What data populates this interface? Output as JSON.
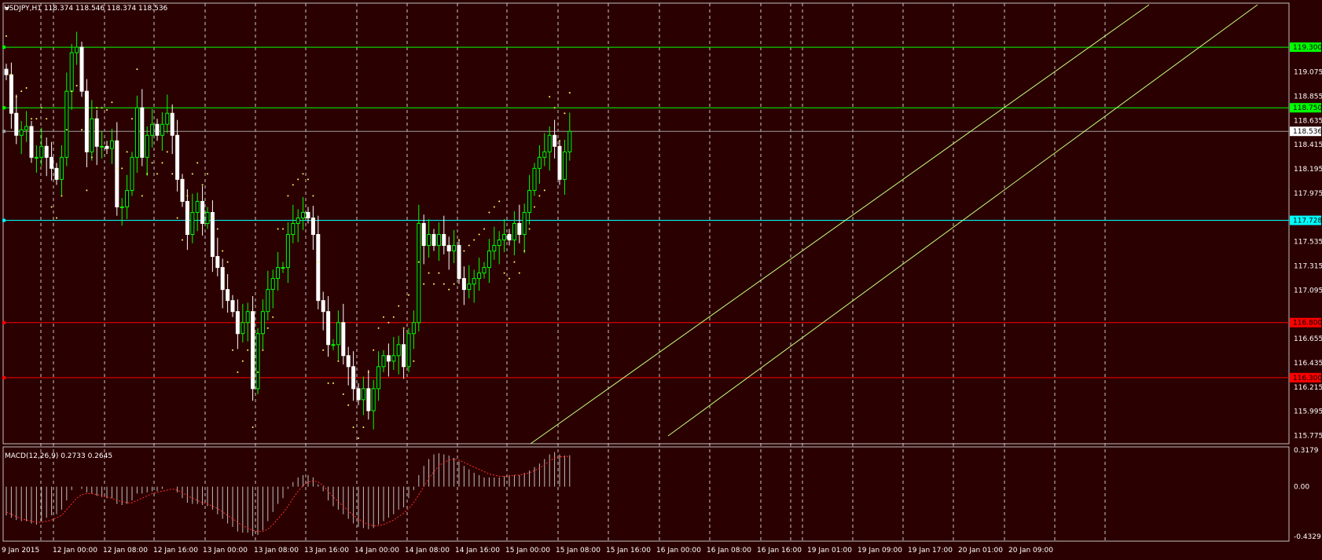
{
  "header": {
    "symbol_line": "USDJPY,H1  118.374 118.546 118.374 118.536"
  },
  "macd": {
    "label": "MACD(12,26,9) 0.2733 0.2645",
    "ticks": [
      "0.3179",
      "0.00",
      "-0.4329"
    ]
  },
  "colors": {
    "background": "#2b0000",
    "bull": "#00ff00",
    "bear": "#ffffff",
    "hline_green": "#00ff00",
    "hline_cyan": "#00ffff",
    "hline_red": "#ff0000",
    "psar": "#ffff66",
    "channel": "#c8ff80",
    "macd_hist": "#c0c0c0",
    "macd_signal": "#ff3030"
  },
  "chart_data": {
    "type": "candlestick",
    "symbol": "USDJPY",
    "timeframe": "H1",
    "ylim": [
      115.7,
      119.6
    ],
    "y_ticks": [
      "119.075",
      "118.855",
      "118.635",
      "118.415",
      "118.195",
      "117.975",
      "117.535",
      "117.315",
      "117.095",
      "116.655",
      "116.435",
      "116.215",
      "115.995",
      "115.775"
    ],
    "x_ticks": [
      "9 Jan 2015",
      "12 Jan 00:00",
      "12 Jan 08:00",
      "12 Jan 16:00",
      "13 Jan 00:00",
      "13 Jan 08:00",
      "13 Jan 16:00",
      "14 Jan 00:00",
      "14 Jan 08:00",
      "14 Jan 16:00",
      "15 Jan 00:00",
      "15 Jan 08:00",
      "15 Jan 16:00",
      "16 Jan 00:00",
      "16 Jan 08:00",
      "16 Jan 16:00",
      "19 Jan 01:00",
      "19 Jan 09:00",
      "19 Jan 17:00",
      "20 Jan 01:00",
      "20 Jan 09:00"
    ],
    "horizontal_levels": [
      {
        "value": 119.3,
        "label": "119.300",
        "color": "green"
      },
      {
        "value": 118.75,
        "label": "118.750",
        "color": "green"
      },
      {
        "value": 118.536,
        "label": "118.536",
        "color": "gray"
      },
      {
        "value": 117.728,
        "label": "117.728",
        "color": "cyan"
      },
      {
        "value": 116.8,
        "label": "116.800",
        "color": "red"
      },
      {
        "value": 116.3,
        "label": "116.300",
        "color": "red"
      }
    ],
    "closes": [
      119.05,
      118.7,
      118.5,
      118.55,
      118.58,
      118.3,
      118.3,
      118.4,
      118.3,
      118.2,
      118.1,
      118.3,
      118.9,
      119.25,
      119.3,
      118.9,
      118.35,
      118.65,
      118.4,
      118.4,
      118.38,
      118.45,
      117.85,
      117.85,
      118.0,
      118.3,
      118.75,
      118.3,
      118.5,
      118.6,
      118.5,
      118.6,
      118.7,
      118.5,
      118.1,
      117.9,
      117.6,
      117.8,
      117.9,
      117.7,
      117.8,
      117.4,
      117.3,
      117.1,
      117.0,
      116.9,
      116.7,
      116.8,
      116.9,
      116.2,
      116.7,
      116.9,
      117.1,
      117.2,
      117.3,
      117.3,
      117.6,
      117.7,
      117.75,
      117.8,
      117.75,
      117.6,
      117.0,
      116.9,
      116.6,
      116.6,
      116.8,
      116.5,
      116.4,
      116.2,
      116.1,
      116.2,
      116.0,
      116.2,
      116.4,
      116.5,
      116.45,
      116.5,
      116.6,
      116.4,
      116.7,
      116.8,
      117.7,
      117.5,
      117.6,
      117.5,
      117.6,
      117.5,
      117.45,
      117.5,
      117.2,
      117.1,
      117.15,
      117.2,
      117.25,
      117.3,
      117.45,
      117.5,
      117.55,
      117.6,
      117.55,
      117.7,
      117.6,
      117.8,
      118.0,
      118.2,
      118.3,
      118.35,
      118.5,
      118.4,
      118.1,
      118.35,
      118.536
    ],
    "macd": {
      "ylim": [
        -0.4329,
        0.3179
      ],
      "histogram": [
        -0.25,
        -0.27,
        -0.29,
        -0.3,
        -0.3,
        -0.32,
        -0.33,
        -0.3,
        -0.27,
        -0.25,
        -0.24,
        -0.2,
        -0.12,
        -0.03,
        0.0,
        -0.02,
        -0.05,
        -0.06,
        -0.08,
        -0.09,
        -0.1,
        -0.1,
        -0.15,
        -0.16,
        -0.15,
        -0.12,
        -0.06,
        -0.06,
        -0.05,
        -0.04,
        -0.04,
        -0.02,
        0.0,
        0.0,
        -0.05,
        -0.1,
        -0.14,
        -0.15,
        -0.15,
        -0.16,
        -0.17,
        -0.2,
        -0.24,
        -0.28,
        -0.32,
        -0.35,
        -0.39,
        -0.4,
        -0.4,
        -0.43,
        -0.42,
        -0.38,
        -0.3,
        -0.22,
        -0.15,
        -0.1,
        -0.02,
        0.04,
        0.08,
        0.1,
        0.1,
        0.08,
        0.02,
        -0.04,
        -0.12,
        -0.17,
        -0.2,
        -0.24,
        -0.28,
        -0.32,
        -0.35,
        -0.36,
        -0.37,
        -0.36,
        -0.33,
        -0.3,
        -0.27,
        -0.24,
        -0.2,
        -0.18,
        -0.1,
        -0.03,
        0.1,
        0.18,
        0.24,
        0.28,
        0.29,
        0.28,
        0.27,
        0.25,
        0.22,
        0.18,
        0.15,
        0.12,
        0.1,
        0.08,
        0.08,
        0.08,
        0.08,
        0.09,
        0.1,
        0.1,
        0.1,
        0.12,
        0.14,
        0.17,
        0.2,
        0.24,
        0.28,
        0.3,
        0.28,
        0.27,
        0.2733
      ],
      "signal": [
        -0.22,
        -0.24,
        -0.26,
        -0.28,
        -0.29,
        -0.3,
        -0.31,
        -0.31,
        -0.3,
        -0.29,
        -0.27,
        -0.25,
        -0.2,
        -0.15,
        -0.1,
        -0.07,
        -0.06,
        -0.06,
        -0.07,
        -0.08,
        -0.09,
        -0.1,
        -0.12,
        -0.13,
        -0.14,
        -0.14,
        -0.12,
        -0.1,
        -0.08,
        -0.06,
        -0.05,
        -0.04,
        -0.03,
        -0.02,
        -0.03,
        -0.05,
        -0.08,
        -0.1,
        -0.12,
        -0.14,
        -0.15,
        -0.17,
        -0.19,
        -0.22,
        -0.25,
        -0.28,
        -0.31,
        -0.34,
        -0.36,
        -0.38,
        -0.39,
        -0.39,
        -0.37,
        -0.33,
        -0.28,
        -0.23,
        -0.17,
        -0.1,
        -0.04,
        0.01,
        0.04,
        0.05,
        0.04,
        0.01,
        -0.04,
        -0.09,
        -0.13,
        -0.17,
        -0.21,
        -0.25,
        -0.28,
        -0.31,
        -0.33,
        -0.34,
        -0.34,
        -0.33,
        -0.31,
        -0.29,
        -0.26,
        -0.23,
        -0.19,
        -0.14,
        -0.07,
        0.0,
        0.07,
        0.13,
        0.18,
        0.21,
        0.23,
        0.24,
        0.23,
        0.21,
        0.19,
        0.17,
        0.15,
        0.13,
        0.11,
        0.1,
        0.09,
        0.09,
        0.09,
        0.1,
        0.1,
        0.11,
        0.12,
        0.14,
        0.16,
        0.19,
        0.22,
        0.25,
        0.26,
        0.26,
        0.2645
      ]
    }
  }
}
